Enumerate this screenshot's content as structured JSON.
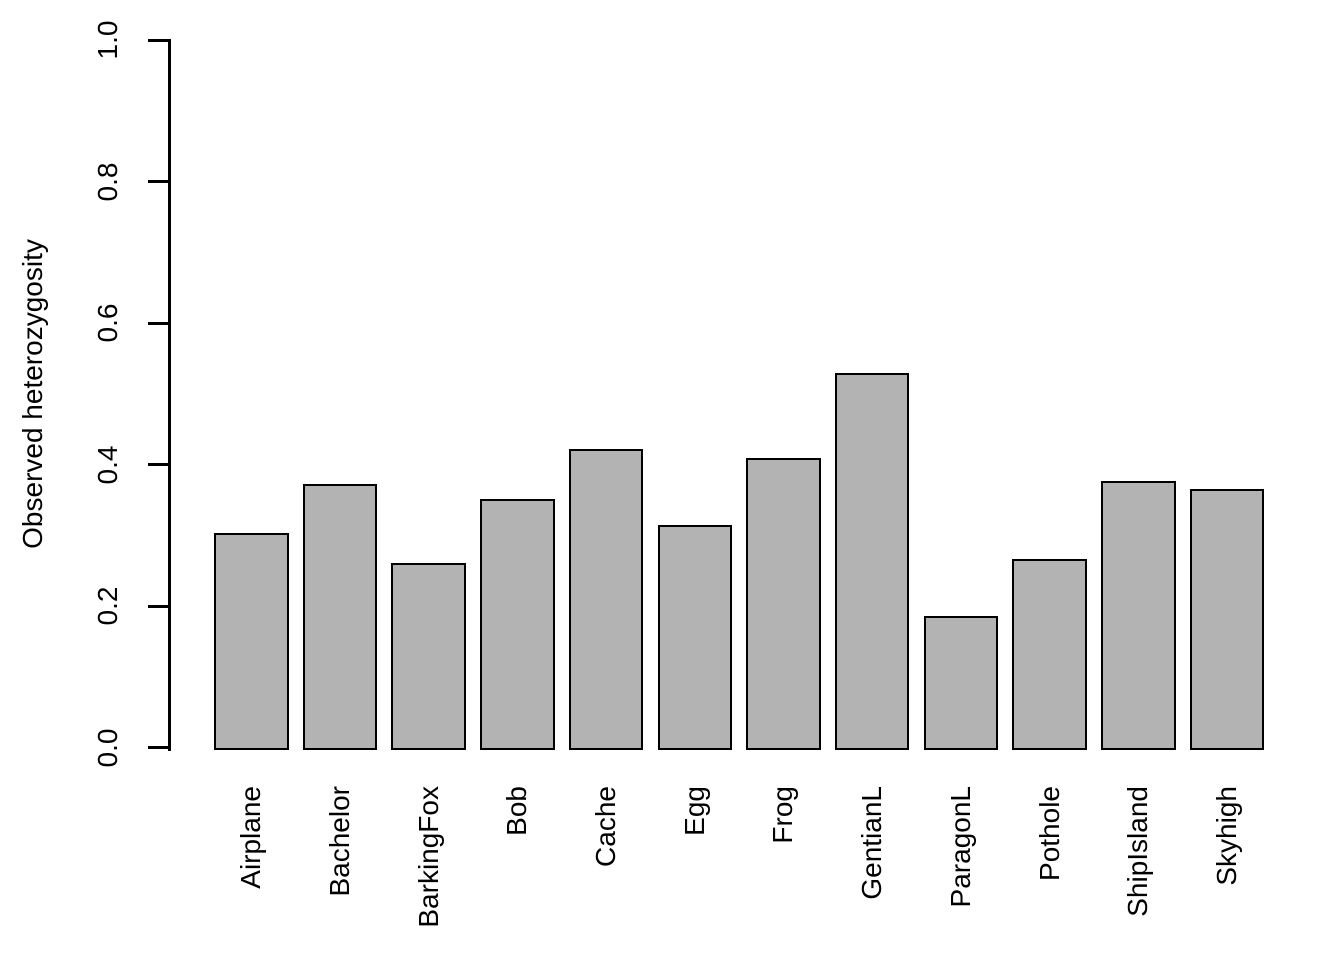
{
  "chart_data": {
    "type": "bar",
    "title": "",
    "xlabel": "",
    "ylabel": "Observed heterozygosity",
    "categories": [
      "Airplane",
      "Bachelor",
      "BarkingFox",
      "Bob",
      "Cache",
      "Egg",
      "Frog",
      "GentianL",
      "ParagonL",
      "Pothole",
      "ShipIsland",
      "Skyhigh"
    ],
    "values": [
      0.303,
      0.373,
      0.261,
      0.351,
      0.422,
      0.314,
      0.409,
      0.53,
      0.186,
      0.266,
      0.377,
      0.366
    ],
    "ylim": [
      0.0,
      1.0
    ],
    "yticks": [
      0.0,
      0.2,
      0.4,
      0.6,
      0.8,
      1.0
    ],
    "ytick_labels": [
      "0.0",
      "0.2",
      "0.4",
      "0.6",
      "0.8",
      "1.0"
    ],
    "grid": false,
    "legend": "none",
    "bar_fill": "#b3b3b3",
    "bar_border": "#000000",
    "axis_color": "#000000"
  }
}
